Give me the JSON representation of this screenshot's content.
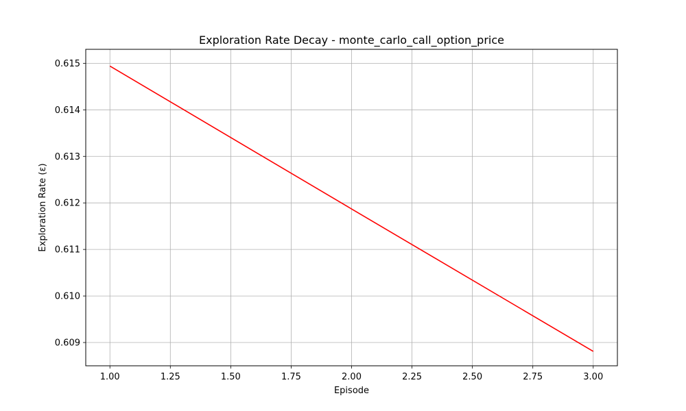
{
  "chart_data": {
    "type": "line",
    "title": "Exploration Rate Decay - monte_carlo_call_option_price",
    "xlabel": "Episode",
    "ylabel": "Exploration Rate (ε)",
    "xlim": [
      0.9,
      3.1
    ],
    "ylim": [
      0.6085,
      0.6153
    ],
    "xticks": [
      1.0,
      1.25,
      1.5,
      1.75,
      2.0,
      2.25,
      2.5,
      2.75,
      3.0
    ],
    "xtick_labels": [
      "1.00",
      "1.25",
      "1.50",
      "1.75",
      "2.00",
      "2.25",
      "2.50",
      "2.75",
      "3.00"
    ],
    "yticks": [
      0.609,
      0.61,
      0.611,
      0.612,
      0.613,
      0.614,
      0.615
    ],
    "ytick_labels": [
      "0.609",
      "0.610",
      "0.611",
      "0.612",
      "0.613",
      "0.614",
      "0.615"
    ],
    "grid": true,
    "series": [
      {
        "color": "#ff0000",
        "x": [
          1,
          2,
          3
        ],
        "y": [
          0.61494,
          0.61187,
          0.60881
        ]
      }
    ]
  }
}
